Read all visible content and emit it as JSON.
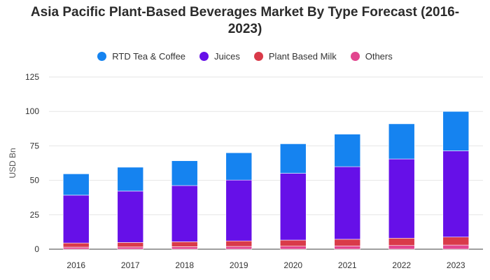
{
  "chart_data": {
    "type": "bar",
    "stacked": true,
    "title_lines": [
      "Asia Pacific Plant-Based Beverages Market By Type Forecast (2016-",
      "2023)"
    ],
    "ylabel": "USD Bn",
    "xlabel": "",
    "ylim": [
      0,
      125
    ],
    "yticks": [
      0,
      25,
      50,
      75,
      100,
      125
    ],
    "grid": true,
    "legend_position": "top-center",
    "categories": [
      "2016",
      "2017",
      "2018",
      "2019",
      "2020",
      "2021",
      "2022",
      "2023"
    ],
    "series": [
      {
        "name": "Others",
        "color": "#e2468f",
        "values": [
          1.5,
          1.6,
          1.8,
          2.0,
          2.2,
          2.4,
          2.7,
          3.0
        ]
      },
      {
        "name": "Plant Based Milk",
        "color": "#d93a49",
        "values": [
          3.0,
          3.3,
          3.6,
          4.0,
          4.4,
          4.8,
          5.3,
          5.8
        ]
      },
      {
        "name": "Juices",
        "color": "#6610e8",
        "values": [
          34.7,
          37.3,
          40.8,
          44.2,
          48.5,
          52.7,
          57.5,
          62.6
        ]
      },
      {
        "name": "RTD Tea & Coffee",
        "color": "#1583f0",
        "values": [
          15.5,
          17.3,
          18.0,
          19.8,
          21.4,
          23.6,
          25.5,
          28.6
        ]
      }
    ]
  },
  "legend": [
    {
      "label": "RTD Tea & Coffee",
      "color": "#1583f0"
    },
    {
      "label": "Juices",
      "color": "#6610e8"
    },
    {
      "label": "Plant Based Milk",
      "color": "#d93a49"
    },
    {
      "label": "Others",
      "color": "#e2468f"
    }
  ]
}
